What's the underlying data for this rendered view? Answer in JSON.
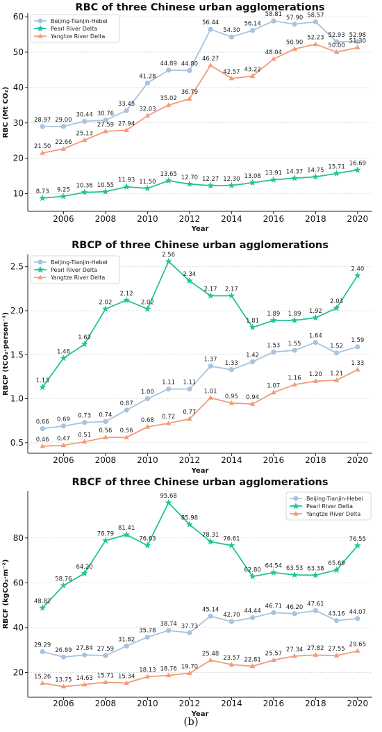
{
  "caption": "(b)",
  "colors": {
    "beijing": "#a9c3df",
    "pearl": "#23c39a",
    "yangtze": "#f39b78"
  },
  "chart_data": [
    {
      "type": "line",
      "title": "RBC of three Chinese urban agglomerations",
      "xlabel": "Year",
      "ylabel": "RBC (Mt CO₂)",
      "x": [
        2005,
        2006,
        2007,
        2008,
        2009,
        2010,
        2011,
        2012,
        2013,
        2014,
        2015,
        2016,
        2017,
        2018,
        2019,
        2020
      ],
      "xticks": [
        2006,
        2008,
        2010,
        2012,
        2014,
        2016,
        2018,
        2020
      ],
      "yticks": [
        10,
        20,
        30,
        40,
        50,
        60
      ],
      "ylim": [
        5,
        61
      ],
      "grid": true,
      "legend_position": "top-left",
      "series": [
        {
          "name": "Beijing-Tianjin-Hebei",
          "marker": "circle",
          "color": "#a9c3df",
          "values": [
            28.97,
            29.0,
            30.44,
            30.76,
            33.45,
            41.28,
            44.89,
            44.8,
            56.44,
            54.3,
            56.14,
            58.81,
            57.9,
            58.57,
            52.93,
            52.98
          ],
          "labels": [
            "28.97",
            "29.00",
            "30.44",
            "30.76",
            "33.45",
            "41.28",
            "44.89",
            "44.80",
            "56.44",
            "54.30",
            "56.14",
            "58.81",
            "57.90",
            "58.57",
            "52.93",
            "52.98"
          ]
        },
        {
          "name": "Pearl River Delta",
          "marker": "star",
          "color": "#23c39a",
          "values": [
            8.73,
            9.25,
            10.36,
            10.55,
            11.93,
            11.5,
            13.65,
            12.7,
            12.27,
            12.3,
            13.08,
            13.91,
            14.37,
            14.75,
            15.71,
            16.69
          ],
          "labels": [
            "8.73",
            "9.25",
            "10.36",
            "10.55",
            "11.93",
            "11.50",
            "13.65",
            "12.70",
            "12.27",
            "12.30",
            "13.08",
            "13.91",
            "14.37",
            "14.75",
            "15.71",
            "16.69"
          ]
        },
        {
          "name": "Yangtze River Delta",
          "marker": "triangle",
          "color": "#f39b78",
          "values": [
            21.5,
            22.66,
            25.13,
            27.59,
            27.94,
            32.03,
            35.02,
            36.79,
            46.27,
            42.57,
            43.22,
            48.04,
            50.9,
            52.23,
            50.0,
            51.3
          ],
          "labels": [
            "21.50",
            "22.66",
            "25.13",
            "27.59",
            "27.94",
            "32.03",
            "35.02",
            "36.79",
            "46.27",
            "42.57",
            "43.22",
            "48.04",
            "50.90",
            "52.23",
            "50.00",
            "51.30"
          ]
        }
      ]
    },
    {
      "type": "line",
      "title": "RBCP of three Chinese urban agglomerations",
      "xlabel": "Year",
      "ylabel": "RBCP (tCO₂·person⁻¹)",
      "x": [
        2005,
        2006,
        2007,
        2008,
        2009,
        2010,
        2011,
        2012,
        2013,
        2014,
        2015,
        2016,
        2017,
        2018,
        2019,
        2020
      ],
      "xticks": [
        2006,
        2008,
        2010,
        2012,
        2014,
        2016,
        2018,
        2020
      ],
      "yticks": [
        0.5,
        1.0,
        1.5,
        2.0,
        2.5
      ],
      "ytick_labels": [
        "0.5",
        "1.0",
        "1.5",
        "2.0",
        "2.5"
      ],
      "ylim": [
        0.38,
        2.64
      ],
      "grid": true,
      "legend_position": "top-left",
      "series": [
        {
          "name": "Beijing-Tianjin-Hebei",
          "marker": "circle",
          "color": "#a9c3df",
          "values": [
            0.66,
            0.69,
            0.73,
            0.74,
            0.87,
            1.0,
            1.11,
            1.11,
            1.37,
            1.33,
            1.42,
            1.53,
            1.55,
            1.64,
            1.52,
            1.59
          ],
          "labels": [
            "0.66",
            "0.69",
            "0.73",
            "0.74",
            "0.87",
            "1.00",
            "1.11",
            "1.11",
            "1.37",
            "1.33",
            "1.42",
            "1.53",
            "1.55",
            "1.64",
            "1.52",
            "1.59"
          ]
        },
        {
          "name": "Pearl River Delta",
          "marker": "star",
          "color": "#23c39a",
          "values": [
            1.13,
            1.46,
            1.62,
            2.02,
            2.12,
            2.02,
            2.56,
            2.34,
            2.17,
            2.17,
            1.81,
            1.89,
            1.89,
            1.92,
            2.03,
            2.4
          ],
          "labels": [
            "1.13",
            "1.46",
            "1.62",
            "2.02",
            "2.12",
            "2.02",
            "2.56",
            "2.34",
            "2.17",
            "2.17",
            "1.81",
            "1.89",
            "1.89",
            "1.92",
            "2.03",
            "2.40"
          ]
        },
        {
          "name": "Yangtze River Delta",
          "marker": "triangle",
          "color": "#f39b78",
          "values": [
            0.46,
            0.47,
            0.51,
            0.56,
            0.56,
            0.68,
            0.72,
            0.77,
            1.01,
            0.95,
            0.94,
            1.07,
            1.16,
            1.2,
            1.21,
            1.33
          ],
          "labels": [
            "0.46",
            "0.47",
            "0.51",
            "0.56",
            "0.56",
            "0.68",
            "0.72",
            "0.77",
            "1.01",
            "0.95",
            "0.94",
            "1.07",
            "1.16",
            "1.20",
            "1.21",
            "1.33"
          ]
        }
      ]
    },
    {
      "type": "line",
      "title": "RBCF of three Chinese urban agglomerations",
      "xlabel": "Year",
      "ylabel": "RBCF (kgCO₂·m⁻²)",
      "x": [
        2005,
        2006,
        2007,
        2008,
        2009,
        2010,
        2011,
        2012,
        2013,
        2014,
        2015,
        2016,
        2017,
        2018,
        2019,
        2020
      ],
      "xticks": [
        2006,
        2008,
        2010,
        2012,
        2014,
        2016,
        2018,
        2020
      ],
      "yticks": [
        20,
        40,
        60,
        80
      ],
      "ylim": [
        9,
        101
      ],
      "grid": true,
      "legend_position": "top-right",
      "series": [
        {
          "name": "Beijing-Tianjin-Hebei",
          "marker": "circle",
          "color": "#a9c3df",
          "values": [
            29.29,
            26.89,
            27.84,
            27.59,
            31.82,
            35.78,
            38.74,
            37.73,
            45.14,
            42.7,
            44.44,
            46.71,
            46.2,
            47.61,
            43.16,
            44.07
          ],
          "labels": [
            "29.29",
            "26.89",
            "27.84",
            "27.59",
            "31.82",
            "35.78",
            "38.74",
            "37.73",
            "45.14",
            "42.70",
            "44.44",
            "46.71",
            "46.20",
            "47.61",
            "43.16",
            "44.07"
          ]
        },
        {
          "name": "Pearl River Delta",
          "marker": "star",
          "color": "#23c39a",
          "values": [
            48.82,
            58.76,
            64.2,
            78.79,
            81.41,
            76.63,
            95.68,
            85.98,
            78.31,
            76.61,
            62.8,
            64.54,
            63.53,
            63.38,
            65.69,
            76.55
          ],
          "labels": [
            "48.82",
            "58.76",
            "64.20",
            "78.79",
            "81.41",
            "76.63",
            "95.68",
            "85.98",
            "78.31",
            "76.61",
            "62.80",
            "64.54",
            "63.53",
            "63.38",
            "65.69",
            "76.55"
          ]
        },
        {
          "name": "Yangtze River Delta",
          "marker": "triangle",
          "color": "#f39b78",
          "values": [
            15.26,
            13.75,
            14.63,
            15.71,
            15.34,
            18.13,
            18.76,
            19.7,
            25.48,
            23.57,
            22.81,
            25.57,
            27.34,
            27.82,
            27.55,
            29.65
          ],
          "labels": [
            "15.26",
            "13.75",
            "14.63",
            "15.71",
            "15.34",
            "18.13",
            "18.76",
            "19.70",
            "25.48",
            "23.57",
            "22.81",
            "25.57",
            "27.34",
            "27.82",
            "27.55",
            "29.65"
          ]
        }
      ]
    }
  ]
}
